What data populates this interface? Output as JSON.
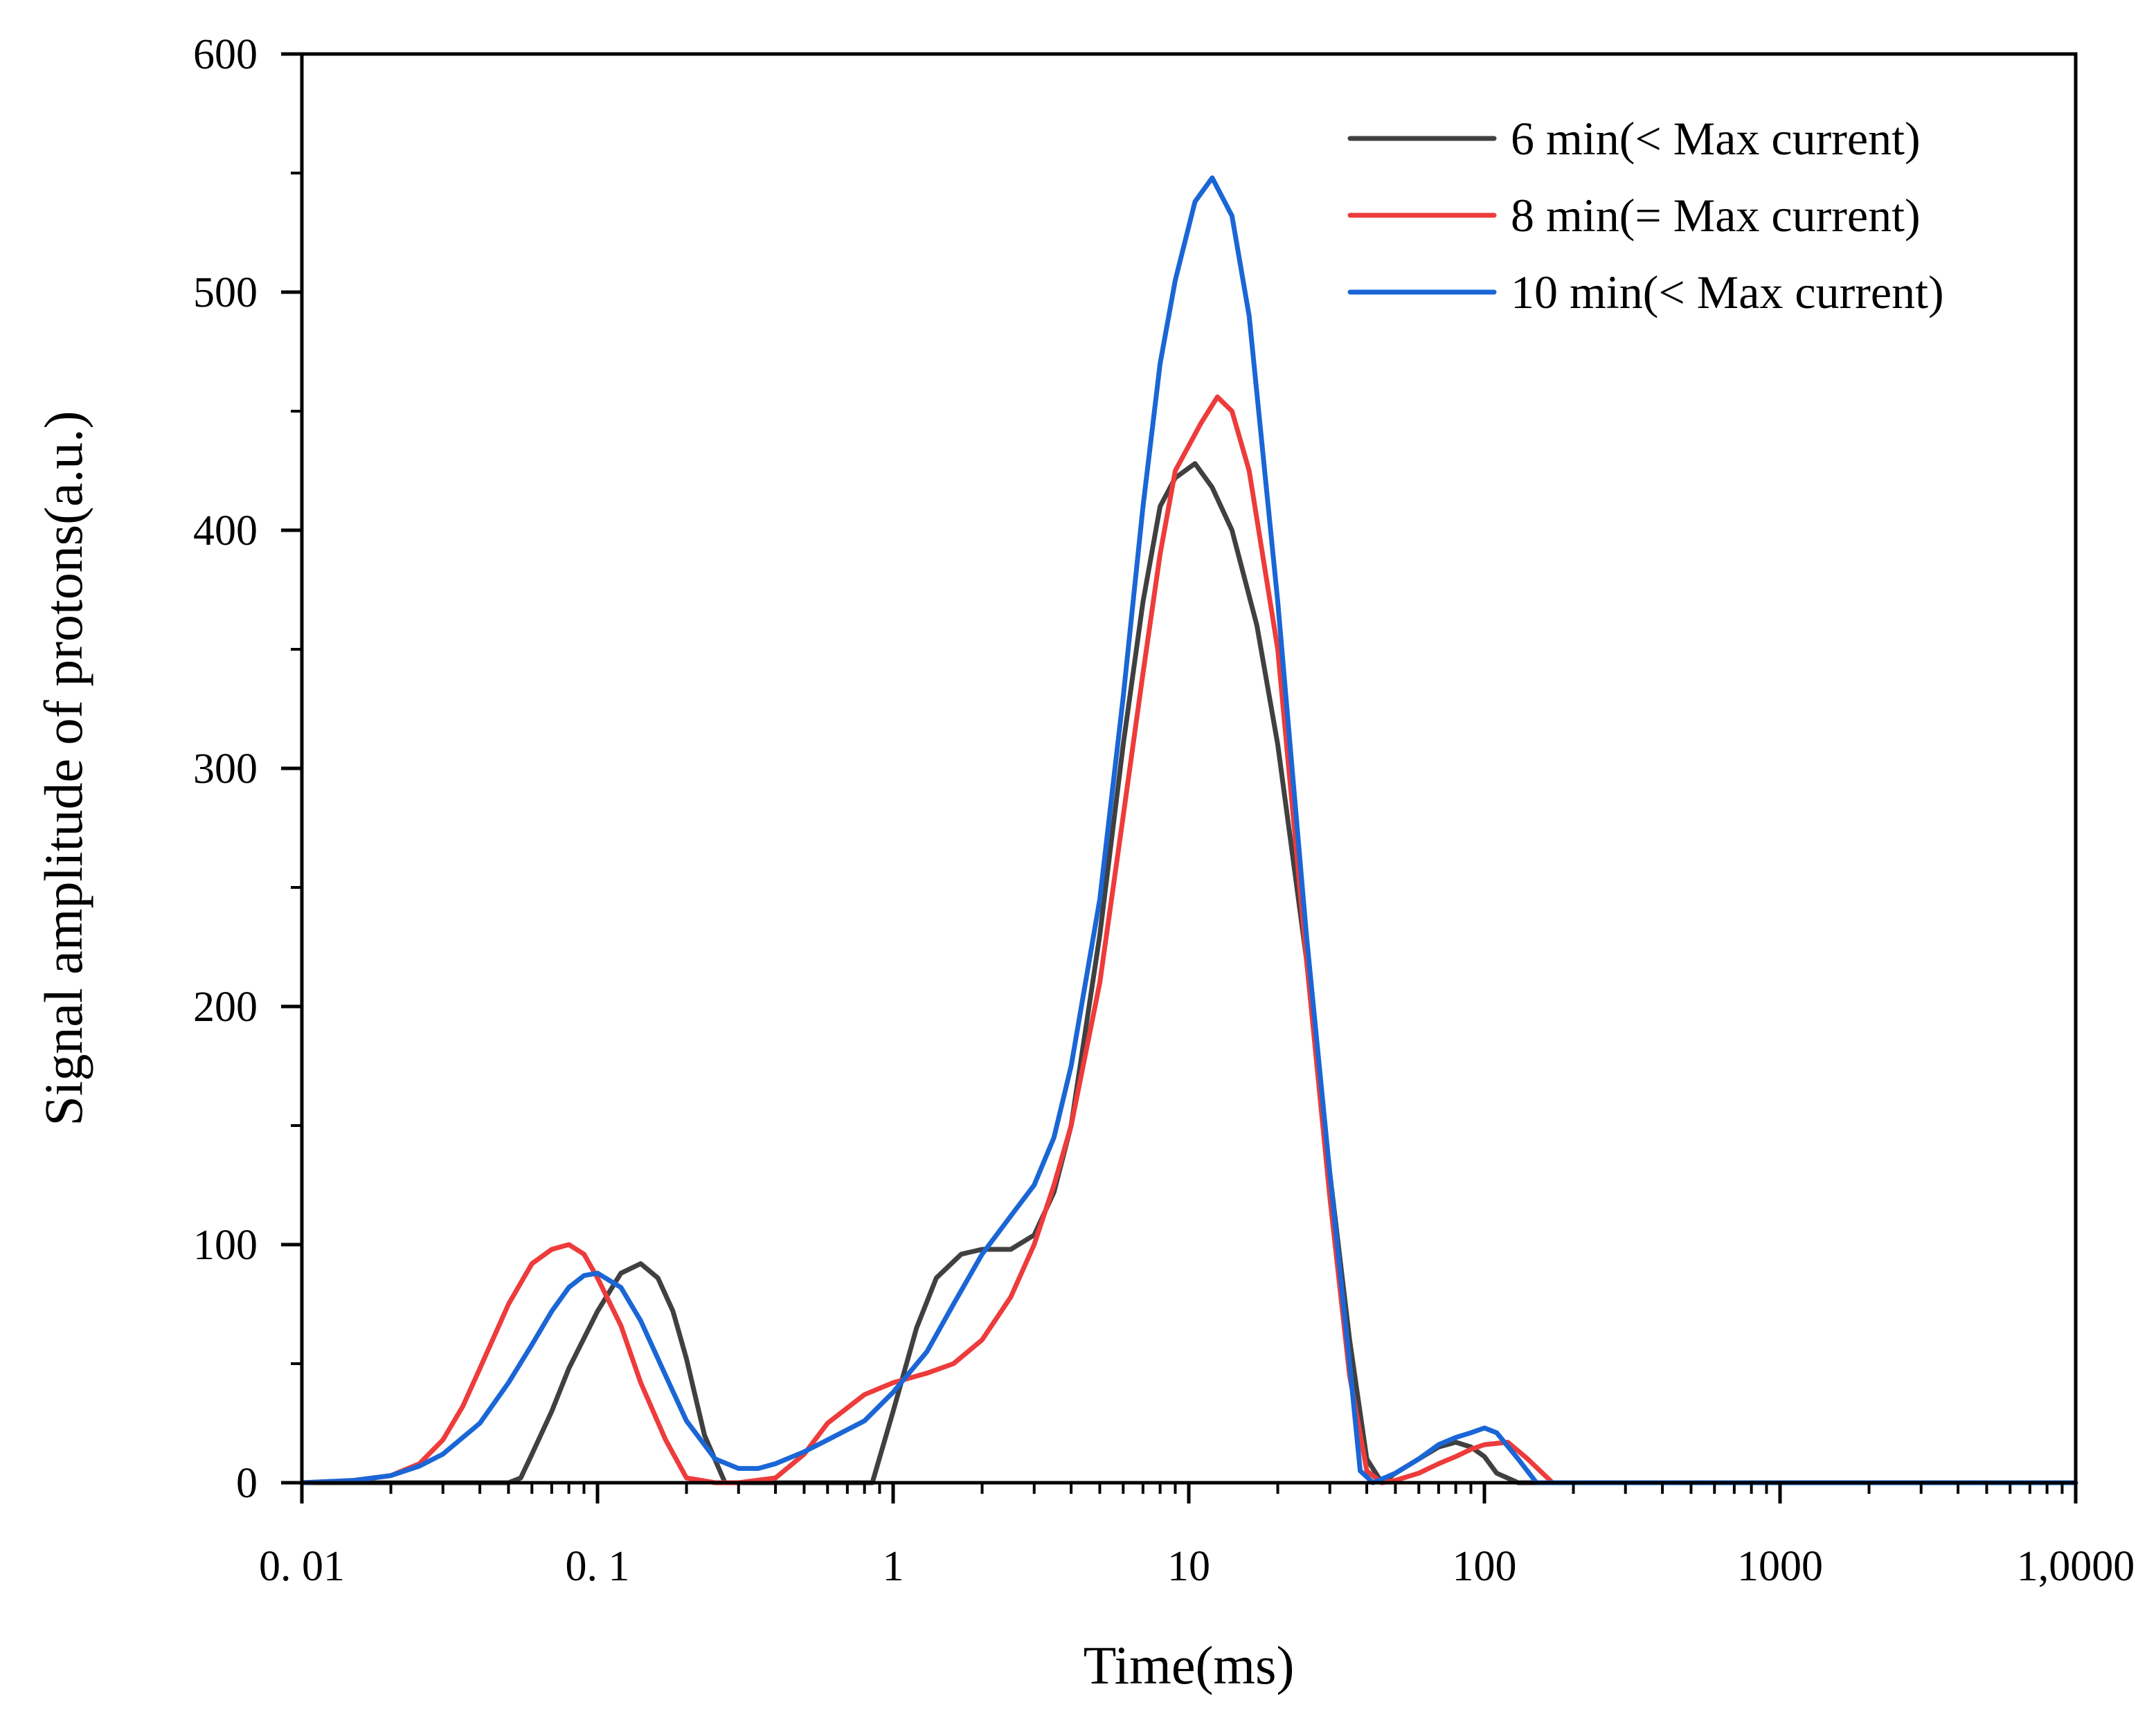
{
  "chart_data": {
    "type": "line",
    "title": "",
    "xlabel": "Time(ms)",
    "ylabel": "Signal amplitude of protons(a.u.)",
    "x_scale": "log",
    "xlim": [
      0.01,
      10000
    ],
    "ylim": [
      0,
      600
    ],
    "x_tick_values": [
      0.01,
      0.1,
      1,
      10,
      100,
      1000,
      10000
    ],
    "x_tick_labels": [
      "0. 01",
      "0. 1",
      "1",
      "10",
      "100",
      "1000",
      "1,0000"
    ],
    "y_tick_values": [
      0,
      100,
      200,
      300,
      400,
      500,
      600
    ],
    "y_tick_labels": [
      "0",
      "100",
      "200",
      "300",
      "400",
      "500",
      "600"
    ],
    "grid": false,
    "legend_position": "top-right",
    "series": [
      {
        "name": "6 min(< Max current)",
        "color": "#404040",
        "x": [
          0.01,
          0.02,
          0.05,
          0.055,
          0.06,
          0.07,
          0.08,
          0.1,
          0.12,
          0.14,
          0.16,
          0.18,
          0.2,
          0.23,
          0.27,
          0.3,
          0.5,
          0.85,
          1.0,
          1.2,
          1.4,
          1.7,
          2.0,
          2.5,
          3.0,
          3.5,
          4.0,
          5.0,
          6.0,
          7.0,
          8.0,
          9.0,
          10.5,
          12,
          14,
          17,
          20,
          25,
          30,
          35,
          40,
          45,
          50,
          60,
          70,
          80,
          90,
          100,
          110,
          130,
          150,
          200,
          1000,
          10000
        ],
        "y": [
          0,
          0,
          0,
          2,
          12,
          30,
          48,
          72,
          88,
          92,
          86,
          72,
          52,
          20,
          0,
          0,
          0,
          0,
          30,
          65,
          86,
          96,
          98,
          98,
          104,
          122,
          150,
          230,
          310,
          370,
          410,
          422,
          428,
          418,
          400,
          360,
          310,
          220,
          130,
          60,
          10,
          0,
          4,
          10,
          15,
          17,
          15,
          11,
          4,
          0,
          0,
          0,
          0,
          0
        ]
      },
      {
        "name": "8 min(= Max current)",
        "color": "#ee3b3b",
        "x": [
          0.01,
          0.015,
          0.02,
          0.025,
          0.03,
          0.035,
          0.04,
          0.05,
          0.06,
          0.07,
          0.08,
          0.09,
          0.1,
          0.12,
          0.14,
          0.17,
          0.2,
          0.25,
          0.3,
          0.4,
          0.5,
          0.6,
          0.8,
          1.0,
          1.3,
          1.6,
          2.0,
          2.5,
          3.0,
          3.5,
          4.0,
          5.0,
          6.0,
          7.0,
          8.0,
          9.0,
          11,
          12.5,
          14,
          16,
          20,
          25,
          30,
          35,
          40,
          45,
          50,
          60,
          70,
          80,
          90,
          100,
          120,
          140,
          170,
          200,
          1000,
          10000
        ],
        "y": [
          0,
          1,
          3,
          8,
          18,
          32,
          48,
          75,
          92,
          98,
          100,
          96,
          86,
          66,
          42,
          18,
          2,
          0,
          0,
          2,
          12,
          25,
          37,
          42,
          46,
          50,
          60,
          78,
          100,
          125,
          150,
          210,
          280,
          340,
          390,
          425,
          445,
          456,
          450,
          425,
          350,
          220,
          120,
          45,
          5,
          0,
          1,
          4,
          8,
          11,
          14,
          16,
          17,
          10,
          0,
          0,
          0,
          0
        ]
      },
      {
        "name": "10 min(< Max current)",
        "color": "#1a66d6",
        "x": [
          0.01,
          0.015,
          0.02,
          0.025,
          0.03,
          0.04,
          0.05,
          0.06,
          0.07,
          0.08,
          0.09,
          0.1,
          0.12,
          0.14,
          0.17,
          0.2,
          0.25,
          0.3,
          0.35,
          0.4,
          0.5,
          0.6,
          0.8,
          1.0,
          1.3,
          1.6,
          2.0,
          2.5,
          3.0,
          3.5,
          4.0,
          5.0,
          6.0,
          7.0,
          8.0,
          9.0,
          10.5,
          12,
          14,
          16,
          20,
          25,
          30,
          35,
          38,
          42,
          50,
          60,
          70,
          80,
          90,
          100,
          110,
          130,
          150,
          200,
          1000,
          10000
        ],
        "y": [
          0,
          1,
          3,
          7,
          12,
          25,
          42,
          58,
          72,
          82,
          87,
          88,
          82,
          68,
          45,
          26,
          10,
          6,
          6,
          8,
          13,
          18,
          26,
          38,
          55,
          75,
          96,
          112,
          125,
          145,
          175,
          245,
          330,
          410,
          470,
          505,
          538,
          548,
          532,
          490,
          370,
          230,
          130,
          50,
          5,
          0,
          4,
          10,
          16,
          19,
          21,
          23,
          21,
          10,
          0,
          0,
          0,
          0
        ]
      }
    ]
  }
}
